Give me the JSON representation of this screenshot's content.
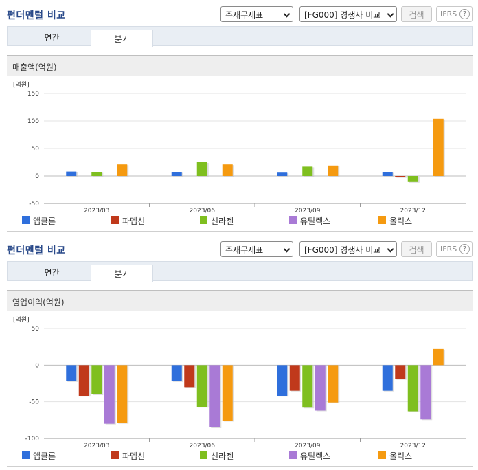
{
  "panels": [
    {
      "title": "펀더멘털 비교",
      "select1": "주재무제표",
      "select2": "[FG000] 경쟁사 비교",
      "search_label": "검색",
      "ifrs_label": "IFRS",
      "help_label": "?",
      "tabs": [
        "연간",
        "분기"
      ],
      "section_title": "매출액(억원)"
    },
    {
      "title": "펀더멘털 비교",
      "select1": "주재무제표",
      "select2": "[FG000] 경쟁사 비교",
      "search_label": "검색",
      "ifrs_label": "IFRS",
      "help_label": "?",
      "tabs": [
        "연간",
        "분기"
      ],
      "section_title": "영업이익(억원)"
    }
  ],
  "chart_data": [
    {
      "type": "bar",
      "title": "매출액(억원)",
      "ylabel": "[억원]",
      "categories": [
        "2023/03",
        "2023/06",
        "2023/09",
        "2023/12"
      ],
      "ylim": [
        -50,
        150
      ],
      "yticks": [
        150,
        100,
        50,
        0,
        -50
      ],
      "grid": true,
      "legend": "bottom",
      "series": [
        {
          "name": "앱클론",
          "color": "#2f6fdc",
          "values": [
            8,
            7,
            6,
            7
          ]
        },
        {
          "name": "파멥신",
          "color": "#c0391b",
          "values": [
            null,
            null,
            null,
            -2
          ]
        },
        {
          "name": "신라젠",
          "color": "#7fbf1f",
          "values": [
            7,
            25,
            17,
            -11
          ]
        },
        {
          "name": "유틸렉스",
          "color": "#a97ad6",
          "values": [
            null,
            null,
            null,
            null
          ]
        },
        {
          "name": "올릭스",
          "color": "#f59a10",
          "values": [
            21,
            21,
            19,
            104
          ]
        }
      ]
    },
    {
      "type": "bar",
      "title": "영업이익(억원)",
      "ylabel": "[억원]",
      "categories": [
        "2023/03",
        "2023/06",
        "2023/09",
        "2023/12"
      ],
      "ylim": [
        -100,
        50
      ],
      "yticks": [
        50,
        0,
        -50,
        -100
      ],
      "grid": true,
      "legend": "bottom",
      "series": [
        {
          "name": "앱클론",
          "color": "#2f6fdc",
          "values": [
            -22,
            -22,
            -42,
            -35
          ]
        },
        {
          "name": "파멥신",
          "color": "#c0391b",
          "values": [
            -42,
            -30,
            -35,
            -19
          ]
        },
        {
          "name": "신라젠",
          "color": "#7fbf1f",
          "values": [
            -40,
            -57,
            -58,
            -63
          ]
        },
        {
          "name": "유틸렉스",
          "color": "#a97ad6",
          "values": [
            -80,
            -85,
            -62,
            -74
          ]
        },
        {
          "name": "올릭스",
          "color": "#f59a10",
          "values": [
            -79,
            -76,
            -51,
            22
          ]
        }
      ]
    }
  ]
}
